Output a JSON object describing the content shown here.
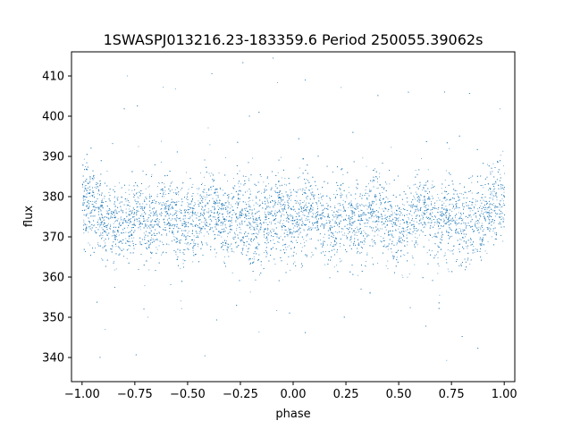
{
  "chart_data": {
    "type": "scatter",
    "title": "1SWASPJ013216.23-183359.6 Period 250055.39062s",
    "xlabel": "phase",
    "ylabel": "flux",
    "xlim": [
      -1.05,
      1.05
    ],
    "ylim": [
      334,
      416
    ],
    "xticks": [
      -1.0,
      -0.75,
      -0.5,
      -0.25,
      0.0,
      0.25,
      0.5,
      0.75,
      1.0
    ],
    "xtick_labels": [
      "−1.00",
      "−0.75",
      "−0.50",
      "−0.25",
      "0.00",
      "0.25",
      "0.50",
      "0.75",
      "1.00"
    ],
    "yticks": [
      340,
      350,
      360,
      370,
      380,
      390,
      400,
      410
    ],
    "ytick_labels": [
      "340",
      "350",
      "360",
      "370",
      "380",
      "390",
      "400",
      "410"
    ],
    "grid": false,
    "marker_color": "#1f77b4",
    "series": [
      {
        "description_values": {
          "phase_range": [
            -1.0,
            1.0
          ],
          "mean_flux": 376,
          "semi_amplitude": 3.5,
          "flux_spread_sd": 5,
          "min_flux": 338,
          "max_flux": 415,
          "dip_phases": [
            -0.68,
            -0.32,
            0.0,
            0.32,
            0.68
          ],
          "sample_points": [
            [
              -1.0,
              372
            ],
            [
              -0.9,
              378
            ],
            [
              -0.8,
              380
            ],
            [
              -0.7,
              368
            ],
            [
              -0.6,
              378
            ],
            [
              -0.5,
              381
            ],
            [
              -0.4,
              375
            ],
            [
              -0.32,
              367
            ],
            [
              -0.2,
              380
            ],
            [
              -0.1,
              377
            ],
            [
              0.0,
              368
            ],
            [
              0.1,
              378
            ],
            [
              0.2,
              380
            ],
            [
              0.32,
              367
            ],
            [
              0.4,
              375
            ],
            [
              0.5,
              381
            ],
            [
              0.6,
              378
            ],
            [
              0.7,
              368
            ],
            [
              0.8,
              380
            ],
            [
              0.9,
              378
            ],
            [
              1.0,
              372
            ]
          ]
        }
      }
    ]
  }
}
